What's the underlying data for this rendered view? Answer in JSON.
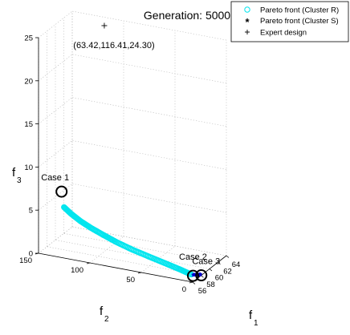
{
  "chart_data": {
    "type": "scatter",
    "title": "Generation: 5000",
    "xlabel": "f",
    "xlabel_sub": "1",
    "ylabel": "f",
    "ylabel_sub": "2",
    "zlabel": "f",
    "zlabel_sub": "3",
    "xlim": [
      56,
      64
    ],
    "ylim": [
      0,
      150
    ],
    "zlim": [
      0,
      25
    ],
    "x_ticks": [
      "56",
      "58",
      "60",
      "62",
      "64"
    ],
    "y_ticks": [
      "0",
      "50",
      "100",
      "150"
    ],
    "z_ticks": [
      "0",
      "5",
      "10",
      "15",
      "20",
      "25"
    ],
    "grid": true,
    "legend_position": "top-right",
    "series": [
      {
        "name": "Pareto front (Cluster R)",
        "marker": "circle-open",
        "color": "#00e5ee",
        "points": [
          [
            56.2,
            126,
            5.8
          ],
          [
            56.4,
            120,
            5.1
          ],
          [
            56.7,
            112,
            4.3
          ],
          [
            57.0,
            103,
            3.6
          ],
          [
            57.3,
            92,
            2.9
          ],
          [
            57.6,
            80,
            2.2
          ],
          [
            57.8,
            66,
            1.6
          ],
          [
            57.9,
            50,
            1.1
          ],
          [
            57.9,
            35,
            0.7
          ],
          [
            57.8,
            20,
            0.35
          ],
          [
            57.6,
            8,
            0.1
          ]
        ]
      },
      {
        "name": "Pareto front (Cluster S)",
        "marker": "asterisk",
        "color": "#0000cc",
        "points": [
          [
            57.6,
            6,
            0
          ],
          [
            57.7,
            4,
            0
          ],
          [
            57.8,
            3,
            0
          ],
          [
            57.9,
            1.5,
            0
          ],
          [
            58.0,
            0.5,
            0
          ]
        ]
      },
      {
        "name": "Expert design",
        "marker": "plus",
        "color": "#000000",
        "points": [
          [
            63.42,
            116.41,
            24.3
          ]
        ]
      }
    ],
    "annotations": [
      {
        "text": "(63.42,116.41,24.30)",
        "point": [
          63.42,
          116.41,
          24.3
        ]
      },
      {
        "text": "Case 1",
        "point": [
          56.1,
          128,
          7.6
        ]
      },
      {
        "text": "Case 2",
        "point": [
          57.55,
          6,
          0
        ]
      },
      {
        "text": "Case 3",
        "point": [
          58.05,
          0,
          0
        ]
      }
    ]
  }
}
